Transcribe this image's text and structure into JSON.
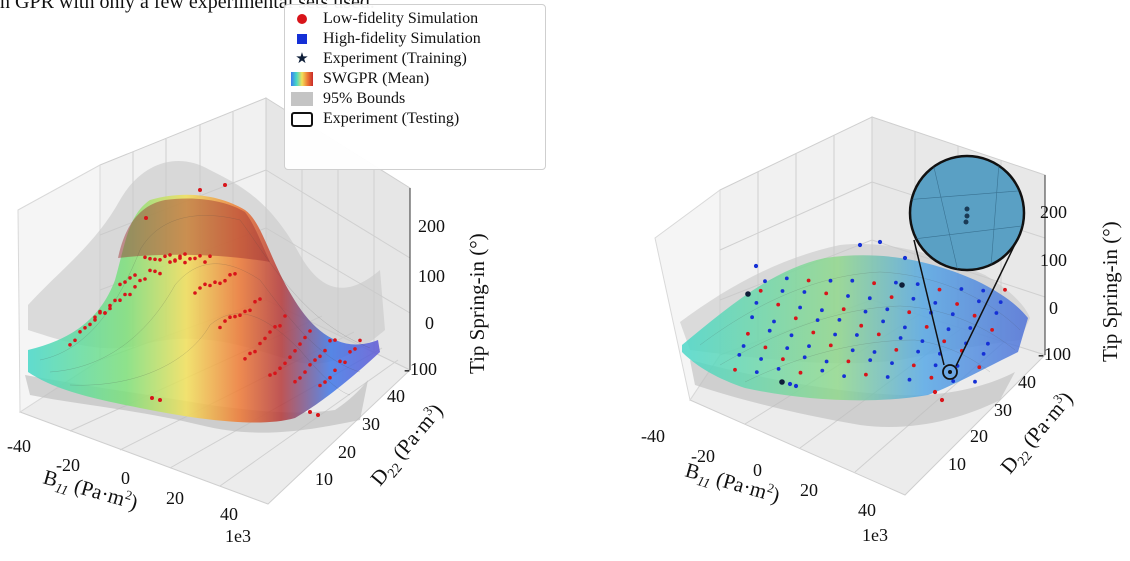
{
  "caption": "n GPR with only a few experimental sets used.",
  "legend": [
    {
      "icon": "red-dot",
      "label": "Low-fidelity Simulation"
    },
    {
      "icon": "blue-square",
      "label": "High-fidelity Simulation"
    },
    {
      "icon": "black-star",
      "label": "Experiment (Training)"
    },
    {
      "icon": "rainbow-swatch",
      "label": "SWGPR (Mean)"
    },
    {
      "icon": "gray-swatch",
      "label": "95% Bounds"
    },
    {
      "icon": "open-rounded-box",
      "label": "Experiment (Testing)"
    }
  ],
  "colors": {
    "low_fidelity": "#d8141a",
    "high_fidelity": "#1530d6",
    "experiment": "#0e1e38",
    "bounds": "#c4c4c4",
    "mean_colormap": [
      "#3b7cf0",
      "#46d7c8",
      "#f2e05a",
      "#ee7a35",
      "#c92a2a"
    ]
  },
  "chart_data": [
    {
      "type": "surface3d",
      "z_ticks": [
        "200",
        "100",
        "0",
        "-100"
      ],
      "z_label": "Tip Spring-in (°)",
      "x_ticks": [
        "-40",
        "-20",
        "0",
        "20",
        "40"
      ],
      "x_label": "B",
      "x_label_sub": "11",
      "x_label_unit": " (Pa·m",
      "x_label_sup": "2",
      "x_label_end": ")",
      "x_multiplier": "1e3",
      "y_ticks": [
        "10",
        "20",
        "30",
        "40"
      ],
      "y_label": "D",
      "y_label_sub": "22",
      "y_label_unit": " (Pa·m",
      "y_label_sup": "3",
      "y_label_end": ")",
      "x_range": [
        -45,
        45
      ],
      "y_range": [
        5,
        45
      ],
      "z_range": [
        -100,
        250
      ],
      "mean_surface": "peak of about 220 near B11 = -20e3, D22 = 20, falling to about -80 at B11 = 40e3",
      "series": [
        {
          "name": "Low-fidelity Simulation",
          "marker": "dot"
        },
        {
          "name": "SWGPR (Mean)",
          "marker": "surface"
        },
        {
          "name": "95% Bounds",
          "marker": "surface"
        }
      ]
    },
    {
      "type": "surface3d",
      "z_ticks": [
        "200",
        "100",
        "0",
        "-100"
      ],
      "z_label": "Tip Spring-in (°)",
      "x_ticks": [
        "-40",
        "-20",
        "0",
        "20",
        "40"
      ],
      "x_label": "B",
      "x_label_sub": "11",
      "x_label_unit": " (Pa·m",
      "x_label_sup": "2",
      "x_label_end": ")",
      "x_multiplier": "1e3",
      "y_ticks": [
        "10",
        "20",
        "30",
        "40"
      ],
      "y_label": "D",
      "y_label_sub": "22",
      "y_label_unit": " (Pa·m",
      "y_label_sup": "3",
      "y_label_end": ")",
      "x_range": [
        -45,
        45
      ],
      "y_range": [
        5,
        45
      ],
      "z_range": [
        -100,
        250
      ],
      "mean_surface": "nearly flat sheet between about -40 and 40",
      "series": [
        {
          "name": "Low-fidelity Simulation",
          "marker": "dot"
        },
        {
          "name": "High-fidelity Simulation",
          "marker": "square"
        },
        {
          "name": "Experiment (Training)",
          "marker": "star"
        },
        {
          "name": "SWGPR (Mean)",
          "marker": "surface"
        },
        {
          "name": "95% Bounds",
          "marker": "surface"
        },
        {
          "name": "Experiment (Testing)",
          "marker": "open-box"
        }
      ]
    }
  ]
}
